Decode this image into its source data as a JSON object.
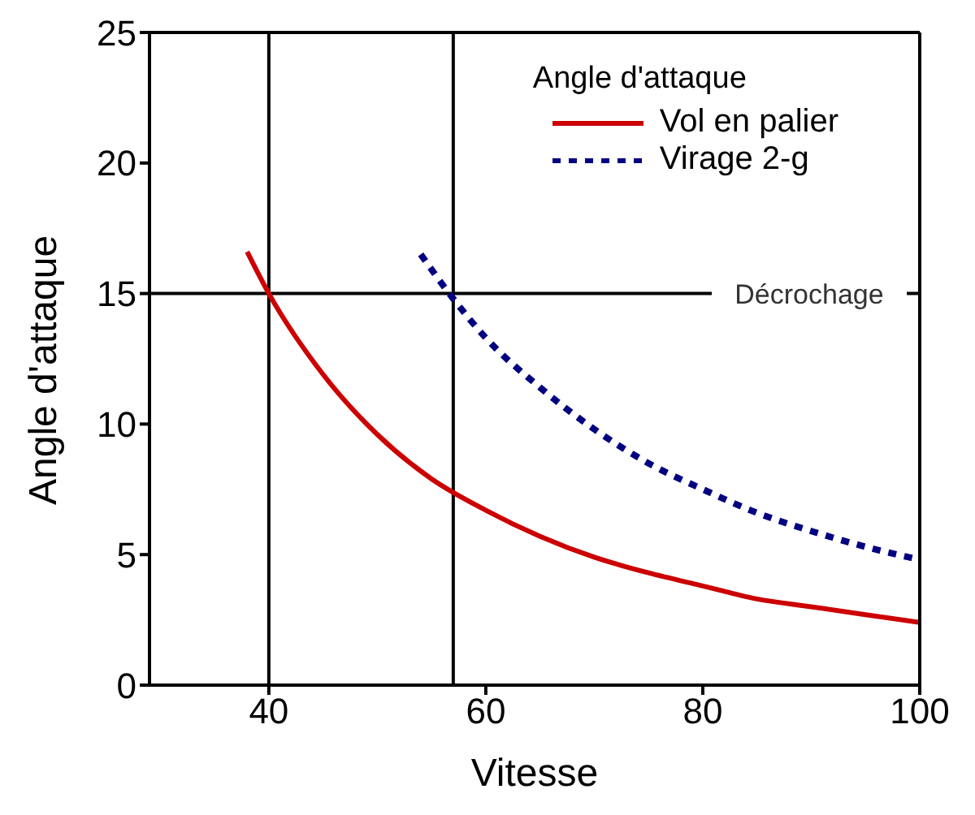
{
  "chart_data": {
    "type": "line",
    "xlabel": "Vitesse",
    "ylabel": "Angle d'attaque",
    "legend_title": "Angle d'attaque",
    "legend": "top right",
    "grid": false,
    "marker": "none",
    "xlim": [
      29,
      100
    ],
    "xticks": [
      40,
      60,
      80,
      100
    ],
    "ylim": [
      0,
      25
    ],
    "yticks": [
      0,
      5,
      10,
      15,
      20,
      25
    ],
    "series": [
      {
        "name": "Vol en palier",
        "color": "#cc0000",
        "line_style": "solid",
        "x": [
          38,
          40,
          45,
          50,
          55,
          60,
          65,
          70,
          75,
          80,
          85,
          90,
          95,
          100
        ],
        "values": [
          16.6,
          15,
          11.9,
          9.6,
          7.9,
          6.7,
          5.7,
          4.9,
          4.3,
          3.8,
          3.3,
          3.0,
          2.7,
          2.4
        ]
      },
      {
        "name": "Virage 2-g",
        "color": "#000080",
        "line_style": "dotted",
        "x": [
          54,
          57,
          60,
          65,
          70,
          75,
          80,
          85,
          90,
          95,
          100
        ],
        "values": [
          16.5,
          14.8,
          13.3,
          11.4,
          9.8,
          8.5,
          7.5,
          6.6,
          5.9,
          5.3,
          4.8
        ]
      }
    ],
    "ref_lines": [
      {
        "axis": "y",
        "value": 15,
        "label": "Décrochage",
        "color": "#000000"
      },
      {
        "axis": "x",
        "value": 40,
        "label": null,
        "color": "#000000"
      },
      {
        "axis": "x",
        "value": 57,
        "label": null,
        "color": "#000000"
      }
    ]
  }
}
